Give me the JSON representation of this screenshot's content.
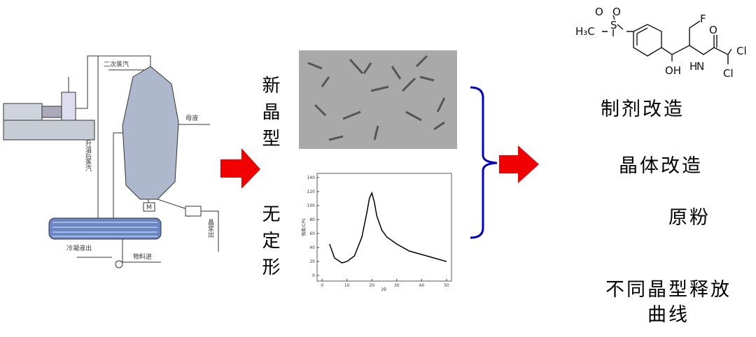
{
  "equipment": {
    "vapor": "二次蒸汽",
    "mother_liquor": "母液",
    "heated_steam": "升温后蒸汽",
    "motor": "M",
    "slurry_out": "晶浆出",
    "condensate_out": "冷凝液出",
    "feed_in": "物料进"
  },
  "sample_labels": {
    "crystal": "新晶型",
    "amorphous": "无定形"
  },
  "xrd": {
    "type": "line",
    "x_label": "2θ",
    "y_label": "强度/CPS",
    "x": [
      3,
      5,
      8,
      10,
      13,
      16,
      18,
      19,
      20,
      21,
      22,
      24,
      26,
      30,
      35,
      40,
      45,
      50
    ],
    "values": [
      45,
      25,
      18,
      20,
      28,
      55,
      90,
      110,
      118,
      105,
      85,
      65,
      55,
      45,
      35,
      30,
      25,
      20
    ],
    "xlim": [
      -2,
      52
    ],
    "ylim": [
      -8,
      146
    ],
    "xticks": [
      0,
      10,
      20,
      30,
      40,
      50
    ],
    "yticks": [
      0,
      20,
      40,
      60,
      80,
      100,
      120,
      140
    ],
    "color": "#000000"
  },
  "molecule": {
    "methyl": "H₃C",
    "sulfur": "S",
    "oxo_1": "O",
    "oxo_2": "O",
    "fluorine": "F",
    "hydroxyl": "OH",
    "nitrogen": "N",
    "hydrogen": "H",
    "carbonyl_o": "O",
    "chlorine_1": "Cl",
    "chlorine_2": "Cl"
  },
  "outcomes": {
    "formulation": "制剂改造",
    "crystal": "晶体改造",
    "raw": "原粉",
    "release_1": "不同晶型释放",
    "release_2": "曲线"
  }
}
